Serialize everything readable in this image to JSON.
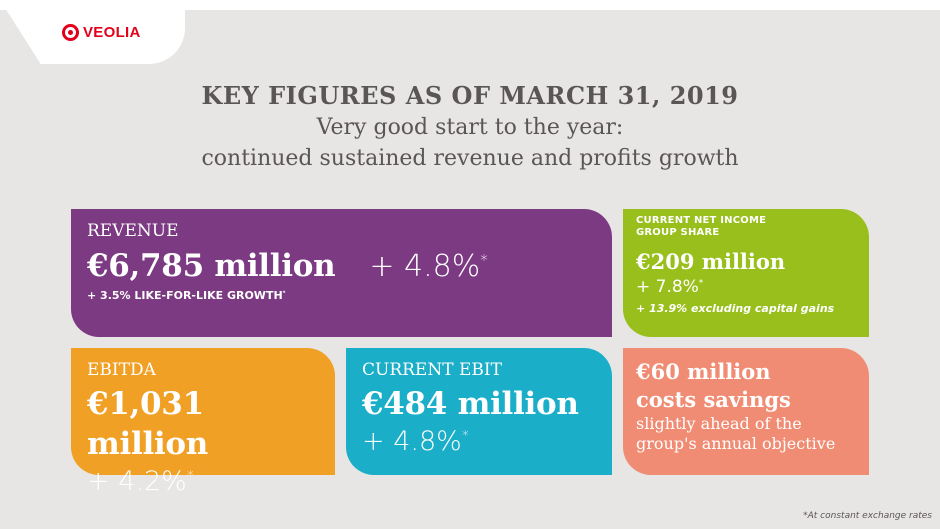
{
  "brand": {
    "name": "VEOLIA",
    "color": "#e2001a",
    "icon": "veolia-logo-icon"
  },
  "heading": {
    "title": "KEY FIGURES AS OF MARCH 31, 2019",
    "subtitle_line1": "Very good start to the year:",
    "subtitle_line2": "continued sustained revenue and profits growth"
  },
  "revenue": {
    "label": "REVENUE",
    "value": "€6,785 million",
    "growth": "+ 4.8%",
    "growth_mark": "*",
    "note": "+ 3.5% LIKE-FOR-LIKE GROWTH",
    "note_mark": "*",
    "color": "#7b3a81"
  },
  "net_income": {
    "label_line1": "CURRENT NET INCOME",
    "label_line2": "GROUP SHARE",
    "value": "€209 million",
    "growth": "+ 7.8%",
    "growth_mark": "*",
    "note": "+ 13.9% excluding capital gains",
    "color": "#98bf1b"
  },
  "ebitda": {
    "label": "EBITDA",
    "value": "€1,031 million",
    "growth": "+ 4.2%",
    "growth_mark": "*",
    "color": "#f0a024"
  },
  "ebit": {
    "label": "CURRENT EBIT",
    "value": "€484 million",
    "growth": "+ 4.8%",
    "growth_mark": "*",
    "color": "#1aaec8"
  },
  "savings": {
    "value_line1": "€60 million",
    "value_line2": "costs savings",
    "text_line1": "slightly ahead of the",
    "text_line2": "group's annual objective",
    "color": "#f08c74"
  },
  "footnote": "*At constant  exchange rates"
}
